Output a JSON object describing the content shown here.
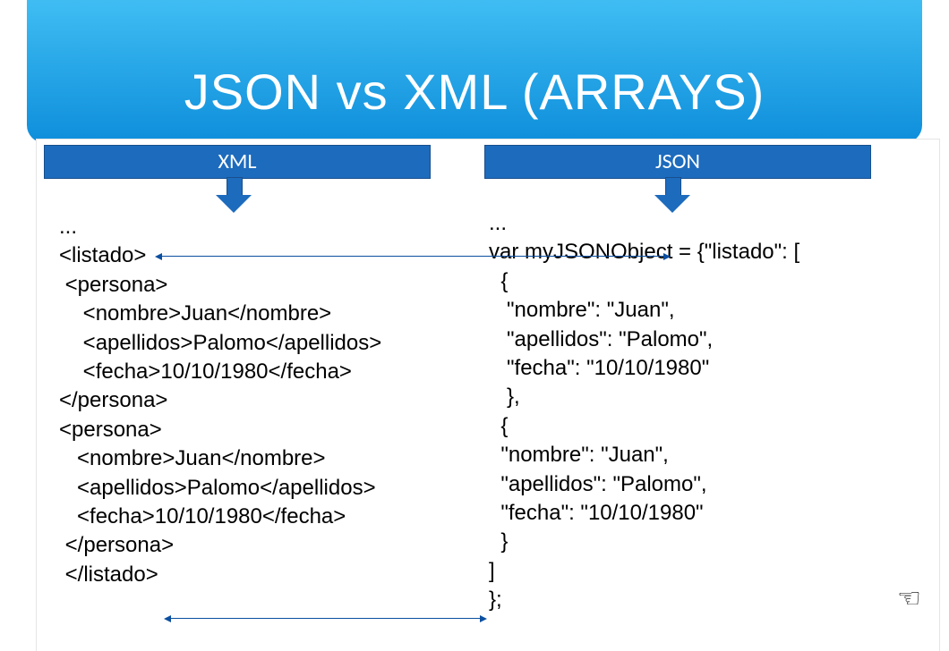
{
  "title": "JSON vs XML (ARRAYS)",
  "colors": {
    "header_gradient_top": "#3fbdf3",
    "header_gradient_bottom": "#0e8edb",
    "bar_bg": "#1d6bbd",
    "bar_border": "#174f8e",
    "connector": "#0b4fa0",
    "text": "#000000",
    "title_text": "#ffffff"
  },
  "headers": {
    "xml": "XML",
    "json": "JSON"
  },
  "code": {
    "xml": "...\n<listado>\n <persona>\n    <nombre>Juan</nombre>\n    <apellidos>Palomo</apellidos>\n    <fecha>10/10/1980</fecha>\n</persona>\n<persona>\n   <nombre>Juan</nombre>\n   <apellidos>Palomo</apellidos>\n   <fecha>10/10/1980</fecha>\n </persona>\n </listado>",
    "json": "...\nvar myJSONObject = {\"listado\": [\n  {\n   \"nombre\": \"Juan\",\n   \"apellidos\": \"Palomo\",\n   \"fecha\": \"10/10/1980\"\n   },\n  {\n  \"nombre\": \"Juan\",\n  \"apellidos\": \"Palomo\",\n  \"fecha\": \"10/10/1980\"\n  }\n]\n};"
  },
  "hand_glyph": "☞"
}
